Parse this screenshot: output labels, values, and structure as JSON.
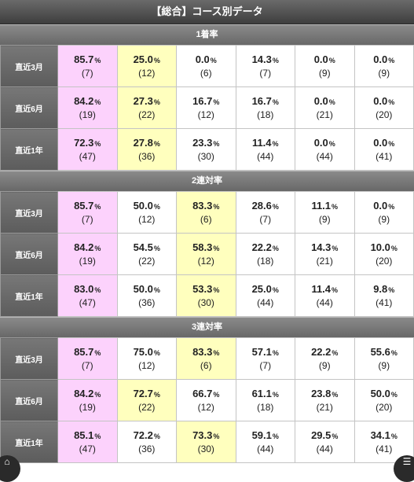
{
  "title": "【総合】コース別データ",
  "unit": "%",
  "sections": [
    {
      "header": "1着率",
      "rows": [
        {
          "label": "直近3月",
          "cells": [
            {
              "pct": "85.7",
              "count": "(7)",
              "hl": "pink"
            },
            {
              "pct": "25.0",
              "count": "(12)",
              "hl": "yellow"
            },
            {
              "pct": "0.0",
              "count": "(6)",
              "hl": ""
            },
            {
              "pct": "14.3",
              "count": "(7)",
              "hl": ""
            },
            {
              "pct": "0.0",
              "count": "(9)",
              "hl": ""
            },
            {
              "pct": "0.0",
              "count": "(9)",
              "hl": ""
            }
          ]
        },
        {
          "label": "直近6月",
          "cells": [
            {
              "pct": "84.2",
              "count": "(19)",
              "hl": "pink"
            },
            {
              "pct": "27.3",
              "count": "(22)",
              "hl": "yellow"
            },
            {
              "pct": "16.7",
              "count": "(12)",
              "hl": ""
            },
            {
              "pct": "16.7",
              "count": "(18)",
              "hl": ""
            },
            {
              "pct": "0.0",
              "count": "(21)",
              "hl": ""
            },
            {
              "pct": "0.0",
              "count": "(20)",
              "hl": ""
            }
          ]
        },
        {
          "label": "直近1年",
          "cells": [
            {
              "pct": "72.3",
              "count": "(47)",
              "hl": "pink"
            },
            {
              "pct": "27.8",
              "count": "(36)",
              "hl": "yellow"
            },
            {
              "pct": "23.3",
              "count": "(30)",
              "hl": ""
            },
            {
              "pct": "11.4",
              "count": "(44)",
              "hl": ""
            },
            {
              "pct": "0.0",
              "count": "(44)",
              "hl": ""
            },
            {
              "pct": "0.0",
              "count": "(41)",
              "hl": ""
            }
          ]
        }
      ]
    },
    {
      "header": "2連対率",
      "rows": [
        {
          "label": "直近3月",
          "cells": [
            {
              "pct": "85.7",
              "count": "(7)",
              "hl": "pink"
            },
            {
              "pct": "50.0",
              "count": "(12)",
              "hl": ""
            },
            {
              "pct": "83.3",
              "count": "(6)",
              "hl": "yellow"
            },
            {
              "pct": "28.6",
              "count": "(7)",
              "hl": ""
            },
            {
              "pct": "11.1",
              "count": "(9)",
              "hl": ""
            },
            {
              "pct": "0.0",
              "count": "(9)",
              "hl": ""
            }
          ]
        },
        {
          "label": "直近6月",
          "cells": [
            {
              "pct": "84.2",
              "count": "(19)",
              "hl": "pink"
            },
            {
              "pct": "54.5",
              "count": "(22)",
              "hl": ""
            },
            {
              "pct": "58.3",
              "count": "(12)",
              "hl": "yellow"
            },
            {
              "pct": "22.2",
              "count": "(18)",
              "hl": ""
            },
            {
              "pct": "14.3",
              "count": "(21)",
              "hl": ""
            },
            {
              "pct": "10.0",
              "count": "(20)",
              "hl": ""
            }
          ]
        },
        {
          "label": "直近1年",
          "cells": [
            {
              "pct": "83.0",
              "count": "(47)",
              "hl": "pink"
            },
            {
              "pct": "50.0",
              "count": "(36)",
              "hl": ""
            },
            {
              "pct": "53.3",
              "count": "(30)",
              "hl": "yellow"
            },
            {
              "pct": "25.0",
              "count": "(44)",
              "hl": ""
            },
            {
              "pct": "11.4",
              "count": "(44)",
              "hl": ""
            },
            {
              "pct": "9.8",
              "count": "(41)",
              "hl": ""
            }
          ]
        }
      ]
    },
    {
      "header": "3連対率",
      "rows": [
        {
          "label": "直近3月",
          "cells": [
            {
              "pct": "85.7",
              "count": "(7)",
              "hl": "pink"
            },
            {
              "pct": "75.0",
              "count": "(12)",
              "hl": ""
            },
            {
              "pct": "83.3",
              "count": "(6)",
              "hl": "yellow"
            },
            {
              "pct": "57.1",
              "count": "(7)",
              "hl": ""
            },
            {
              "pct": "22.2",
              "count": "(9)",
              "hl": ""
            },
            {
              "pct": "55.6",
              "count": "(9)",
              "hl": ""
            }
          ]
        },
        {
          "label": "直近6月",
          "cells": [
            {
              "pct": "84.2",
              "count": "(19)",
              "hl": "pink"
            },
            {
              "pct": "72.7",
              "count": "(22)",
              "hl": "yellow"
            },
            {
              "pct": "66.7",
              "count": "(12)",
              "hl": ""
            },
            {
              "pct": "61.1",
              "count": "(18)",
              "hl": ""
            },
            {
              "pct": "23.8",
              "count": "(21)",
              "hl": ""
            },
            {
              "pct": "50.0",
              "count": "(20)",
              "hl": ""
            }
          ]
        },
        {
          "label": "直近1年",
          "cells": [
            {
              "pct": "85.1",
              "count": "(47)",
              "hl": "pink"
            },
            {
              "pct": "72.2",
              "count": "(36)",
              "hl": ""
            },
            {
              "pct": "73.3",
              "count": "(30)",
              "hl": "yellow"
            },
            {
              "pct": "59.1",
              "count": "(44)",
              "hl": ""
            },
            {
              "pct": "29.5",
              "count": "(44)",
              "hl": ""
            },
            {
              "pct": "34.1",
              "count": "(41)",
              "hl": ""
            }
          ]
        }
      ]
    }
  ],
  "colors": {
    "highlight_top": "#fcd2fc",
    "highlight_second": "#ffffbe",
    "label_bg": "#666666"
  },
  "floating_buttons": {
    "left_icon": "home-icon",
    "right_icon": "menu-icon"
  }
}
